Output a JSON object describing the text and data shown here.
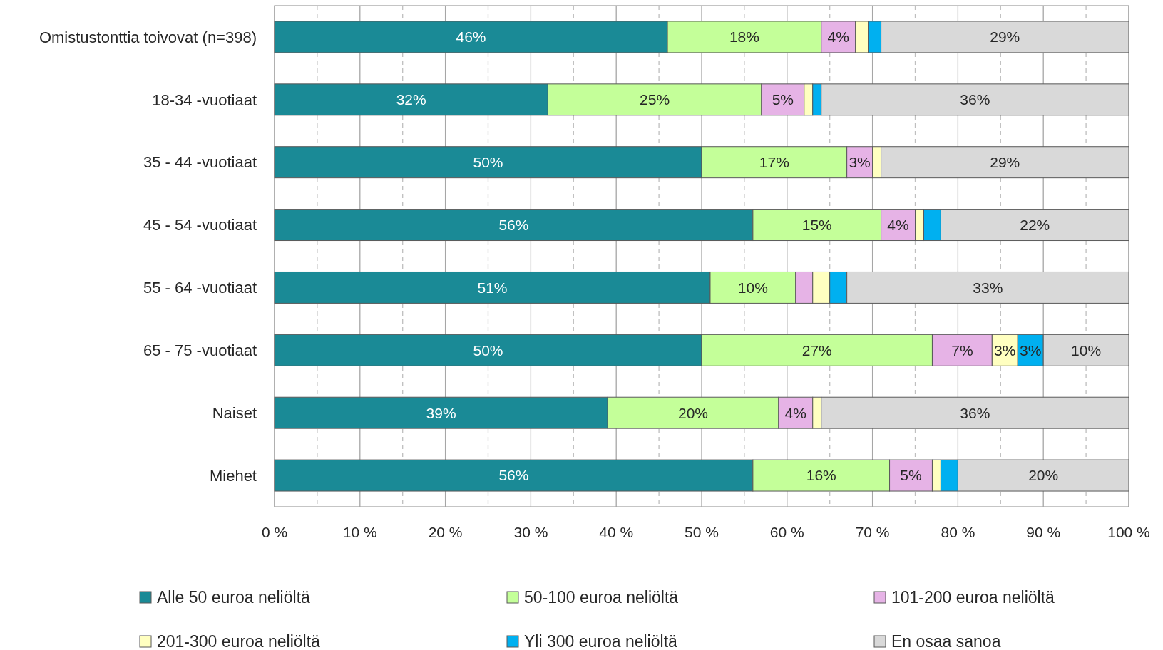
{
  "chart_data": {
    "type": "bar",
    "orientation": "horizontal",
    "stacked": true,
    "categories": [
      "Omistustonttia toivovat (n=398)",
      "18-34 -vuotiaat",
      "35 - 44  -vuotiaat",
      "45 - 54  -vuotiaat",
      "55 - 64  -vuotiaat",
      "65 - 75  -vuotiaat",
      "Naiset",
      "Miehet"
    ],
    "series": [
      {
        "name": "Alle 50 euroa neliöltä",
        "color": "#1a8a96",
        "values": [
          46,
          32,
          50,
          56,
          51,
          50,
          39,
          56
        ],
        "value_labels": [
          "46%",
          "32%",
          "50%",
          "56%",
          "51%",
          "50%",
          "39%",
          "56%"
        ]
      },
      {
        "name": "50-100 euroa neliöltä",
        "color": "#c4ff99",
        "values": [
          18,
          25,
          17,
          15,
          10,
          27,
          20,
          16
        ],
        "value_labels": [
          "18%",
          "25%",
          "17%",
          "15%",
          "10%",
          "27%",
          "20%",
          "16%"
        ]
      },
      {
        "name": "101-200 euroa neliöltä",
        "color": "#e6b3e6",
        "values": [
          4,
          5,
          3,
          4,
          2,
          7,
          4,
          5
        ],
        "value_labels": [
          "4%",
          "5%",
          "3%",
          "4%",
          null,
          "7%",
          "4%",
          "5%"
        ]
      },
      {
        "name": "201-300 euroa neliöltä",
        "color": "#ffffc0",
        "values": [
          1.5,
          1,
          1,
          1,
          2,
          3,
          1,
          1
        ],
        "value_labels": [
          null,
          null,
          null,
          null,
          null,
          "3%",
          null,
          null
        ]
      },
      {
        "name": "Yli 300 euroa neliöltä",
        "color": "#00b0f0",
        "values": [
          1.5,
          1,
          null,
          2,
          2,
          3,
          null,
          2
        ],
        "value_labels": [
          null,
          null,
          null,
          null,
          null,
          "3%",
          null,
          null
        ]
      },
      {
        "name": "En osaa sanoa",
        "color": "#d9d9d9",
        "values": [
          29,
          36,
          29,
          22,
          33,
          10,
          36,
          20
        ],
        "value_labels": [
          "29%",
          "36%",
          "29%",
          "22%",
          "33%",
          "10%",
          "36%",
          "20%"
        ]
      }
    ],
    "xlim": [
      0,
      100
    ],
    "xticks": [
      {
        "value": 0,
        "label": "0 %"
      },
      {
        "value": 5,
        "label": null
      },
      {
        "value": 10,
        "label": "10 %"
      },
      {
        "value": 15,
        "label": null
      },
      {
        "value": 20,
        "label": "20 %"
      },
      {
        "value": 25,
        "label": null
      },
      {
        "value": 30,
        "label": "30 %"
      },
      {
        "value": 35,
        "label": null
      },
      {
        "value": 40,
        "label": "40 %"
      },
      {
        "value": 45,
        "label": null
      },
      {
        "value": 50,
        "label": "50 %"
      },
      {
        "value": 55,
        "label": null
      },
      {
        "value": 60,
        "label": "60 %"
      },
      {
        "value": 65,
        "label": null
      },
      {
        "value": 70,
        "label": "70 %"
      },
      {
        "value": 75,
        "label": null
      },
      {
        "value": 80,
        "label": "80 %"
      },
      {
        "value": 85,
        "label": null
      },
      {
        "value": 90,
        "label": "90 %"
      },
      {
        "value": 95,
        "label": null
      },
      {
        "value": 100,
        "label": "100 %"
      }
    ],
    "grid": "x",
    "legend": "bottom"
  }
}
